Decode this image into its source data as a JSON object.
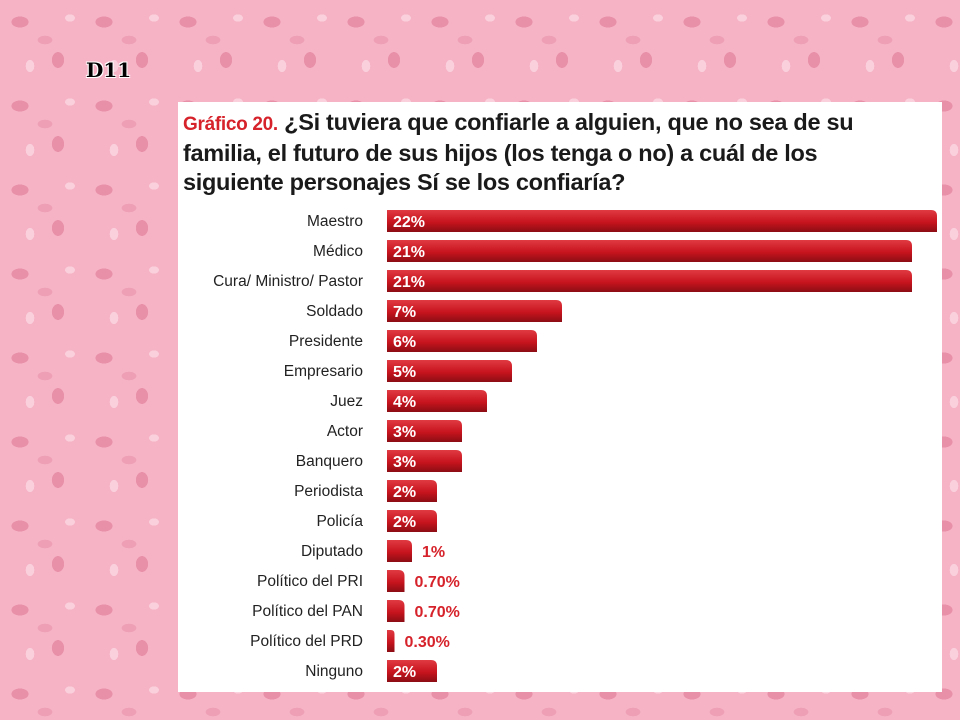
{
  "slide_label": "D11",
  "title": {
    "prefix": "Gráfico 20.",
    "text": "¿Si tuviera que confiarle a alguien, que no sea de su familia, el futuro de sus hijos (los tenga o no) a cuál de los siguiente personajes Sí se los confiaría?"
  },
  "colors": {
    "bar": "#c8141e",
    "bar_highlight": "#e03a42",
    "bar_shadow": "#8c0d14",
    "outside_label": "#d6222a"
  },
  "chart_data": {
    "type": "bar",
    "orientation": "horizontal",
    "title": "¿Si tuviera que confiarle a alguien, que no sea de su familia, el futuro de sus hijos (los tenga o no) a cuál de los siguiente personajes Sí se los confiaría?",
    "categories": [
      "Maestro",
      "Médico",
      "Cura/ Ministro/ Pastor",
      "Soldado",
      "Presidente",
      "Empresario",
      "Juez",
      "Actor",
      "Banquero",
      "Periodista",
      "Policía",
      "Diputado",
      "Político del PRI",
      "Político del PAN",
      "Político del PRD",
      "Ninguno"
    ],
    "values": [
      22,
      21,
      21,
      7,
      6,
      5,
      4,
      3,
      3,
      2,
      2,
      1,
      0.7,
      0.7,
      0.3,
      2
    ],
    "labels": [
      "22%",
      "21%",
      "21%",
      "7%",
      "6%",
      "5%",
      "4%",
      "3%",
      "3%",
      "2%",
      "2%",
      "1%",
      "0.70%",
      "0.70%",
      "0.30%",
      "2%"
    ],
    "unit": "%",
    "xlim": [
      0,
      22
    ],
    "grid": false,
    "legend": "none"
  }
}
